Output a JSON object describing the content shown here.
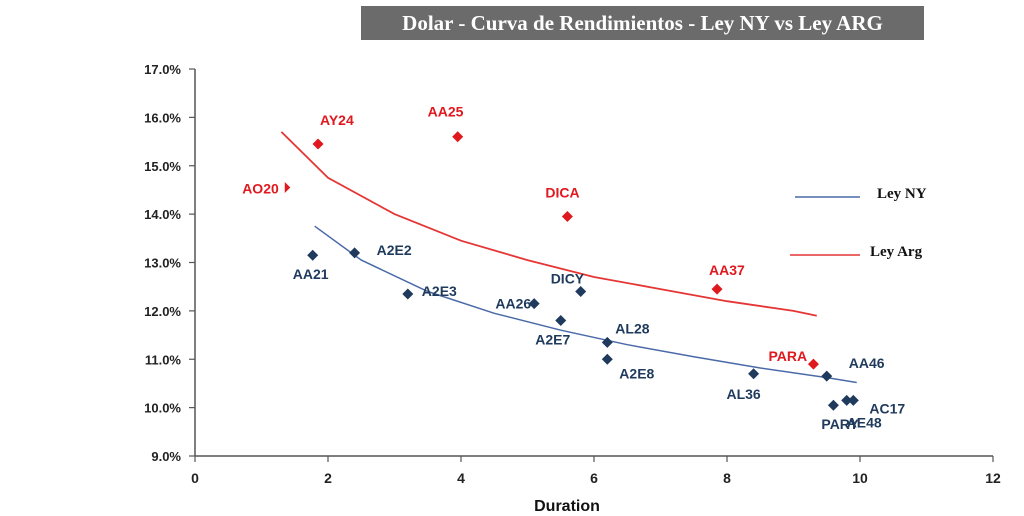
{
  "chart_data": {
    "type": "scatter",
    "title": "Dolar - Curva de Rendimientos - Ley NY vs Ley ARG",
    "xlabel": "Duration",
    "ylabel": "",
    "xlim": [
      0,
      12
    ],
    "ylim": [
      9.0,
      17.0
    ],
    "x_ticks": [
      "0",
      "2",
      "4",
      "6",
      "8",
      "10",
      "12"
    ],
    "y_ticks": [
      "9.0%",
      "10.0%",
      "11.0%",
      "12.0%",
      "13.0%",
      "14.0%",
      "15.0%",
      "16.0%",
      "17.0%"
    ],
    "colors": {
      "ny": "#1f3a5c",
      "arg": "#e0191f",
      "ny_curve": "#4a6aa8",
      "arg_curve": "#e53535"
    },
    "series": [
      {
        "name": "Ley NY",
        "marker": "diamond",
        "points": [
          {
            "label": "AA21",
            "x": 1.77,
            "y": 13.15
          },
          {
            "label": "A2E2",
            "x": 2.4,
            "y": 13.2
          },
          {
            "label": "A2E3",
            "x": 3.2,
            "y": 12.35
          },
          {
            "label": "AA26",
            "x": 5.1,
            "y": 12.15
          },
          {
            "label": "DICY",
            "x": 5.8,
            "y": 12.4
          },
          {
            "label": "A2E7",
            "x": 5.5,
            "y": 11.8
          },
          {
            "label": "AL28",
            "x": 6.2,
            "y": 11.35
          },
          {
            "label": "A2E8",
            "x": 6.2,
            "y": 11.0
          },
          {
            "label": "AL36",
            "x": 8.4,
            "y": 10.7
          },
          {
            "label": "AA46",
            "x": 9.5,
            "y": 10.65
          },
          {
            "label": "PARY",
            "x": 9.6,
            "y": 10.05
          },
          {
            "label": "AE48",
            "x": 9.8,
            "y": 10.15
          },
          {
            "label": "AC17",
            "x": 9.9,
            "y": 10.15
          }
        ],
        "trend": {
          "x": [
            1.8,
            2.5,
            3.5,
            4.5,
            5.5,
            6.5,
            7.5,
            8.5,
            9.5,
            9.95
          ],
          "y": [
            13.75,
            13.05,
            12.4,
            11.95,
            11.6,
            11.3,
            11.05,
            10.82,
            10.62,
            10.52
          ]
        }
      },
      {
        "name": "Ley Arg",
        "marker": "diamond",
        "points": [
          {
            "label": "AO20",
            "x": 1.35,
            "y": 14.55
          },
          {
            "label": "AY24",
            "x": 1.85,
            "y": 15.45
          },
          {
            "label": "AA25",
            "x": 3.95,
            "y": 15.6
          },
          {
            "label": "DICA",
            "x": 5.6,
            "y": 13.95
          },
          {
            "label": "AA37",
            "x": 7.85,
            "y": 12.45
          },
          {
            "label": "PARA",
            "x": 9.3,
            "y": 10.9
          }
        ],
        "trend": {
          "x": [
            1.3,
            2.0,
            3.0,
            4.0,
            5.0,
            6.0,
            7.0,
            8.0,
            9.0,
            9.35
          ],
          "y": [
            15.7,
            14.75,
            14.0,
            13.45,
            13.05,
            12.7,
            12.45,
            12.2,
            12.0,
            11.9
          ]
        }
      }
    ],
    "legend": {
      "position": "right",
      "entries": [
        "Ley NY",
        "Ley Arg"
      ]
    }
  }
}
